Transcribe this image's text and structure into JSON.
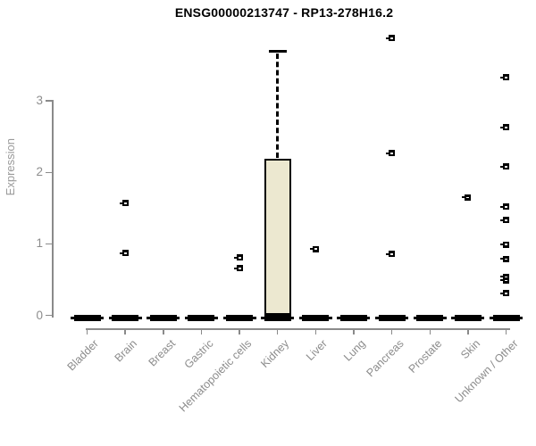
{
  "chart_data": {
    "type": "boxplot",
    "title": "ENSG00000213747 - RP13-278H16.2",
    "ylabel": "Expression",
    "xlabel": "",
    "ylim": [
      0,
      3.95
    ],
    "yticks": [
      0,
      1,
      2,
      3
    ],
    "grid": false,
    "legend": null,
    "categories": [
      "Bladder",
      "Brain",
      "Breast",
      "Gastric",
      "Hematopoietic cells",
      "Kidney",
      "Liver",
      "Lung",
      "Pancreas",
      "Prostate",
      "Skin",
      "Unknown / Other"
    ],
    "boxes": [
      {
        "category": "Bladder",
        "median": 0,
        "q1": 0,
        "q3": 0,
        "whisker_low": 0,
        "whisker_high": 0,
        "outliers": []
      },
      {
        "category": "Brain",
        "median": 0,
        "q1": 0,
        "q3": 0,
        "whisker_low": 0,
        "whisker_high": 0,
        "outliers": [
          0.87,
          1.57
        ]
      },
      {
        "category": "Breast",
        "median": 0,
        "q1": 0,
        "q3": 0,
        "whisker_low": 0,
        "whisker_high": 0,
        "outliers": []
      },
      {
        "category": "Gastric",
        "median": 0,
        "q1": 0,
        "q3": 0,
        "whisker_low": 0,
        "whisker_high": 0,
        "outliers": []
      },
      {
        "category": "Hematopoietic cells",
        "median": 0,
        "q1": 0,
        "q3": 0,
        "whisker_low": 0,
        "whisker_high": 0,
        "outliers": [
          0.66,
          0.81
        ]
      },
      {
        "category": "Kidney",
        "median": 0,
        "q1": 0,
        "q3": 2.19,
        "whisker_low": 0,
        "whisker_high": 3.7,
        "outliers": []
      },
      {
        "category": "Liver",
        "median": 0,
        "q1": 0,
        "q3": 0,
        "whisker_low": 0,
        "whisker_high": 0,
        "outliers": [
          0.93
        ]
      },
      {
        "category": "Lung",
        "median": 0,
        "q1": 0,
        "q3": 0,
        "whisker_low": 0,
        "whisker_high": 0,
        "outliers": []
      },
      {
        "category": "Pancreas",
        "median": 0,
        "q1": 0,
        "q3": 0,
        "whisker_low": 0,
        "whisker_high": 0,
        "outliers": [
          0.86,
          2.27,
          3.88
        ]
      },
      {
        "category": "Prostate",
        "median": 0,
        "q1": 0,
        "q3": 0,
        "whisker_low": 0,
        "whisker_high": 0,
        "outliers": []
      },
      {
        "category": "Skin",
        "median": 0,
        "q1": 0,
        "q3": 0,
        "whisker_low": 0,
        "whisker_high": 0,
        "outliers": [
          1.65
        ]
      },
      {
        "category": "Unknown / Other",
        "median": 0,
        "q1": 0,
        "q3": 0,
        "whisker_low": 0,
        "whisker_high": 0,
        "outliers": [
          0.31,
          0.49,
          0.54,
          0.79,
          0.99,
          1.33,
          1.52,
          2.08,
          2.63,
          3.33
        ]
      }
    ],
    "colors": {
      "box_fill": "#ece8d0",
      "box_border": "#000000",
      "axis": "#8a8a8a",
      "tick_label": "#8c8c8c",
      "axis_label": "#9a9a9a",
      "title": "#000000"
    }
  }
}
